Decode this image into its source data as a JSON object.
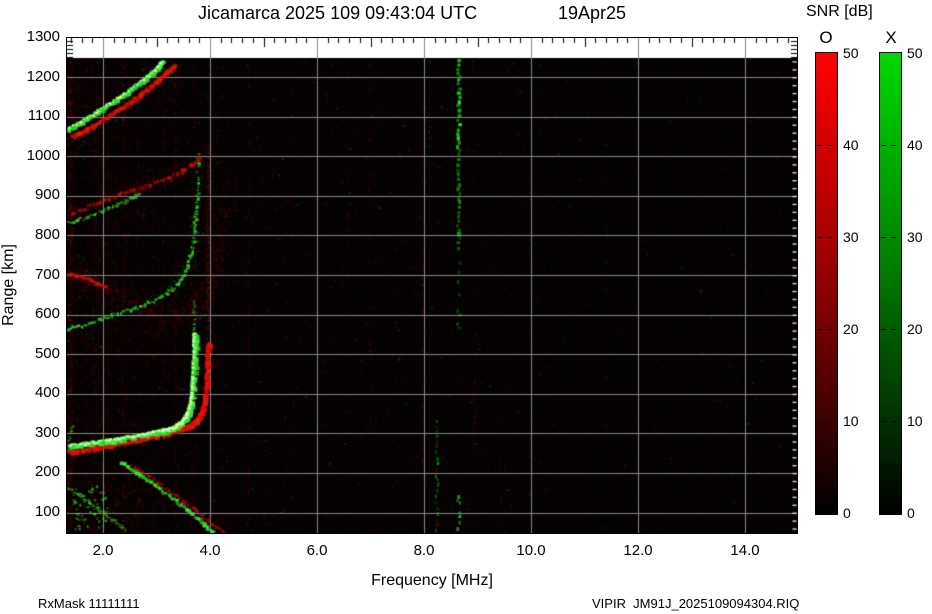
{
  "title": {
    "main": "Jicamarca 2025 109 09:43:04 UTC",
    "date": "19Apr25"
  },
  "x_axis": {
    "label": "Frequency [MHz]",
    "ticks": [
      "2.0",
      "4.0",
      "6.0",
      "8.0",
      "10.0",
      "12.0",
      "14.0"
    ]
  },
  "y_axis": {
    "label": "Range [km]",
    "ticks": [
      "1300",
      "1200",
      "1100",
      "1000",
      "900",
      "800",
      "700",
      "600",
      "500",
      "400",
      "300",
      "200",
      "100"
    ]
  },
  "colorbar": {
    "title": "SNR [dB]",
    "o_label": "O",
    "x_label": "X",
    "ticks": [
      "50",
      "40",
      "30",
      "20",
      "10",
      "0"
    ],
    "o_top_color": "#ff0000",
    "x_top_color": "#00d800",
    "bottom_color": "#000000"
  },
  "footer": {
    "left": "RxMask 11111111",
    "right": "VIPIR  JM91J_2025109094304.RIQ"
  },
  "plot": {
    "background": "#000000",
    "grid_color": "#878787",
    "frame_color": "#000000",
    "empty_band_color": "#ffffff"
  },
  "chart_data": {
    "type": "heatmap",
    "description": "VIPIR ionogram from Jicamarca: echo SNR versus sounding frequency and virtual range. O-polarization echoes are red, X-polarization echoes are green, on a black background with gray gridlines.",
    "title": "Jicamarca 2025 109 09:43:04 UTC 19Apr25",
    "xlabel": "Frequency [MHz]",
    "ylabel": "Range [km]",
    "xlim": [
      1.33,
      15.0
    ],
    "ylim": [
      45,
      1300
    ],
    "data_top_km": 1250,
    "grid": true,
    "x_ticks_mhz": [
      2.0,
      4.0,
      6.0,
      8.0,
      10.0,
      12.0,
      14.0
    ],
    "y_ticks_km": [
      100,
      200,
      300,
      400,
      500,
      600,
      700,
      800,
      900,
      1000,
      1100,
      1200,
      1300
    ],
    "colorbar": {
      "label": "SNR [dB]",
      "range_db": [
        0,
        50
      ],
      "ticks_db": [
        0,
        10,
        20,
        30,
        40,
        50
      ],
      "o_mode_color": "red",
      "x_mode_color": "green"
    },
    "traces": {
      "x_mode_main_f_mhz_vs_km": [
        [
          1.4,
          270
        ],
        [
          1.9,
          281
        ],
        [
          2.4,
          291
        ],
        [
          2.9,
          301
        ],
        [
          3.2,
          310
        ],
        [
          3.45,
          325
        ],
        [
          3.6,
          352
        ],
        [
          3.66,
          400
        ],
        [
          3.69,
          470
        ],
        [
          3.7,
          545
        ]
      ],
      "o_mode_main_f_mhz_vs_km": [
        [
          1.4,
          255
        ],
        [
          1.9,
          268
        ],
        [
          2.5,
          283
        ],
        [
          3.0,
          297
        ],
        [
          3.4,
          315
        ],
        [
          3.7,
          340
        ],
        [
          3.85,
          375
        ],
        [
          3.92,
          430
        ],
        [
          3.95,
          500
        ],
        [
          3.96,
          530
        ]
      ],
      "x_mode_critical_frequency_mhz": 3.7,
      "o_mode_critical_frequency_mhz": 3.95,
      "o_mode_spread_column_top_km": 1040,
      "second_hop_x_mode_f_mhz_vs_km": [
        [
          1.4,
          565
        ],
        [
          2.0,
          590
        ],
        [
          2.6,
          620
        ],
        [
          3.1,
          655
        ],
        [
          3.4,
          705
        ],
        [
          3.55,
          775
        ],
        [
          3.62,
          860
        ],
        [
          3.65,
          1000
        ]
      ],
      "third_hop_f_mhz_vs_km": [
        [
          1.4,
          835
        ],
        [
          1.8,
          855
        ],
        [
          2.2,
          880
        ],
        [
          2.5,
          905
        ]
      ],
      "fourth_hop_f_mhz_vs_km": [
        [
          1.4,
          1075
        ],
        [
          1.8,
          1105
        ],
        [
          2.2,
          1150
        ],
        [
          2.6,
          1205
        ],
        [
          2.9,
          1250
        ]
      ],
      "descending_echo_f_mhz_vs_km": [
        [
          2.3,
          228
        ],
        [
          4.1,
          50
        ]
      ],
      "descending_echo2_f_mhz_vs_km": [
        [
          1.35,
          165
        ],
        [
          2.4,
          80
        ]
      ]
    },
    "interference_lines_mhz": [
      8.2,
      8.65
    ],
    "notes": "Dense faint red RFI speckle over the whole map, strongest on the left half; diffuse red spread echoes between the hop traces at 1.4-4.5 MHz; white dashed minor range ticks along the right frame edge; white unfilled band above 1250 km."
  }
}
